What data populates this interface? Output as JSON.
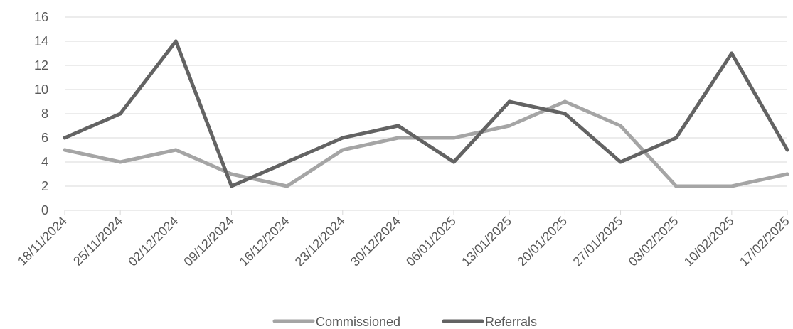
{
  "chart_data": {
    "type": "line",
    "title": "",
    "xlabel": "",
    "ylabel": "",
    "categories": [
      "18/11/2024",
      "25/11/2024",
      "02/12/2024",
      "09/12/2024",
      "16/12/2024",
      "23/12/2024",
      "30/12/2024",
      "06/01/2025",
      "13/01/2025",
      "20/01/2025",
      "27/01/2025",
      "03/02/2025",
      "10/02/2025",
      "17/02/2025"
    ],
    "series": [
      {
        "name": "Commissioned",
        "color": "#a5a5a5",
        "values": [
          5,
          4,
          5,
          3,
          2,
          5,
          6,
          6,
          7,
          9,
          7,
          2,
          2,
          3
        ]
      },
      {
        "name": "Referrals",
        "color": "#636363",
        "values": [
          6,
          8,
          14,
          2,
          4,
          6,
          7,
          4,
          9,
          8,
          4,
          6,
          13,
          5
        ]
      }
    ],
    "ylim": [
      0,
      16
    ],
    "yticks": [
      0,
      2,
      4,
      6,
      8,
      10,
      12,
      14,
      16
    ],
    "grid": true,
    "legend": "bottom"
  }
}
